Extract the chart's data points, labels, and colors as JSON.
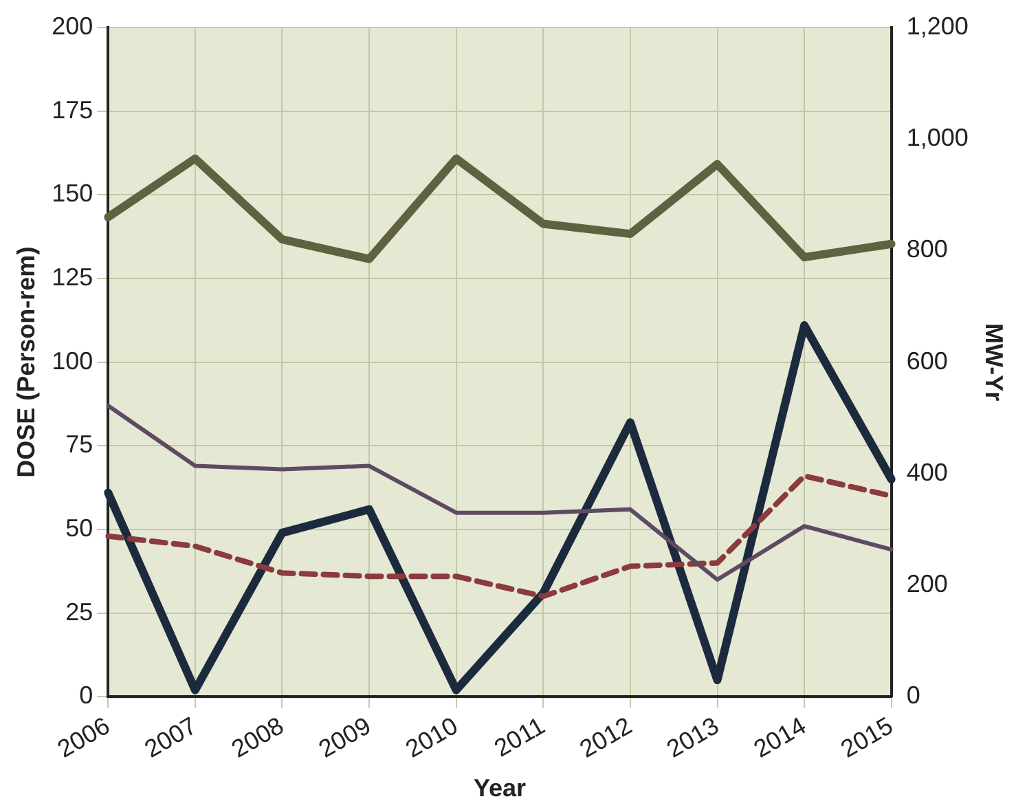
{
  "chart_data": {
    "type": "line",
    "xlabel": "Year",
    "ylabel": "DOSE (Person-rem)",
    "y2label": "MW-Yr",
    "categories": [
      "2006",
      "2007",
      "2008",
      "2009",
      "2010",
      "2011",
      "2012",
      "2013",
      "2014",
      "2015"
    ],
    "series": [
      {
        "color": "#5f6141",
        "axis": "y2",
        "values": [
          860,
          965,
          820,
          785,
          965,
          848,
          830,
          955,
          788,
          812
        ]
      },
      {
        "color": "#5e4a63",
        "values": [
          87,
          69,
          68,
          69,
          55,
          55,
          56,
          35,
          51,
          44
        ]
      },
      {
        "color": "#8b3a3d",
        "line_style": "dashed",
        "values": [
          48,
          45,
          37,
          36,
          36,
          30,
          39,
          40,
          66,
          60
        ]
      },
      {
        "color": "#1c2a3d",
        "values": [
          61,
          2,
          49,
          56,
          2,
          31,
          82,
          5,
          111,
          65
        ]
      }
    ],
    "ylim": [
      0,
      200
    ],
    "yticks": [
      0,
      25,
      50,
      75,
      100,
      125,
      150,
      175,
      200
    ],
    "y2lim": [
      0,
      1200
    ],
    "y2ticks": [
      0,
      200,
      400,
      600,
      800,
      {
        "value": 1000,
        "label": "1,000"
      },
      {
        "value": 1200,
        "label": "1,200"
      }
    ],
    "grid": true,
    "legend": false,
    "marker": "none",
    "line_style": "solid"
  }
}
